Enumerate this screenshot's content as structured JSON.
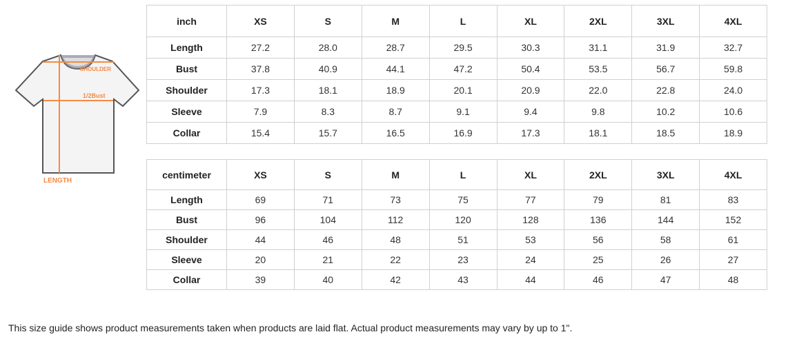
{
  "diagram": {
    "shoulder": "SHOULDER",
    "bust": "1/2Bust",
    "length": "LENGTH",
    "accent": "#f58a42"
  },
  "sizes": [
    "XS",
    "S",
    "M",
    "L",
    "XL",
    "2XL",
    "3XL",
    "4XL"
  ],
  "inch": {
    "unit": "inch",
    "rows": [
      {
        "label": "Length",
        "values": [
          "27.2",
          "28.0",
          "28.7",
          "29.5",
          "30.3",
          "31.1",
          "31.9",
          "32.7"
        ]
      },
      {
        "label": "Bust",
        "values": [
          "37.8",
          "40.9",
          "44.1",
          "47.2",
          "50.4",
          "53.5",
          "56.7",
          "59.8"
        ]
      },
      {
        "label": "Shoulder",
        "values": [
          "17.3",
          "18.1",
          "18.9",
          "20.1",
          "20.9",
          "22.0",
          "22.8",
          "24.0"
        ]
      },
      {
        "label": "Sleeve",
        "values": [
          "7.9",
          "8.3",
          "8.7",
          "9.1",
          "9.4",
          "9.8",
          "10.2",
          "10.6"
        ]
      },
      {
        "label": "Collar",
        "values": [
          "15.4",
          "15.7",
          "16.5",
          "16.9",
          "17.3",
          "18.1",
          "18.5",
          "18.9"
        ]
      }
    ]
  },
  "cm": {
    "unit": "centimeter",
    "rows": [
      {
        "label": "Length",
        "values": [
          "69",
          "71",
          "73",
          "75",
          "77",
          "79",
          "81",
          "83"
        ]
      },
      {
        "label": "Bust",
        "values": [
          "96",
          "104",
          "112",
          "120",
          "128",
          "136",
          "144",
          "152"
        ]
      },
      {
        "label": "Shoulder",
        "values": [
          "44",
          "46",
          "48",
          "51",
          "53",
          "56",
          "58",
          "61"
        ]
      },
      {
        "label": "Sleeve",
        "values": [
          "20",
          "21",
          "22",
          "23",
          "24",
          "25",
          "26",
          "27"
        ]
      },
      {
        "label": "Collar",
        "values": [
          "39",
          "40",
          "42",
          "43",
          "44",
          "46",
          "47",
          "48"
        ]
      }
    ]
  },
  "note": "This size guide shows product measurements taken when products are laid flat. Actual product measurements may vary by up to 1\"."
}
